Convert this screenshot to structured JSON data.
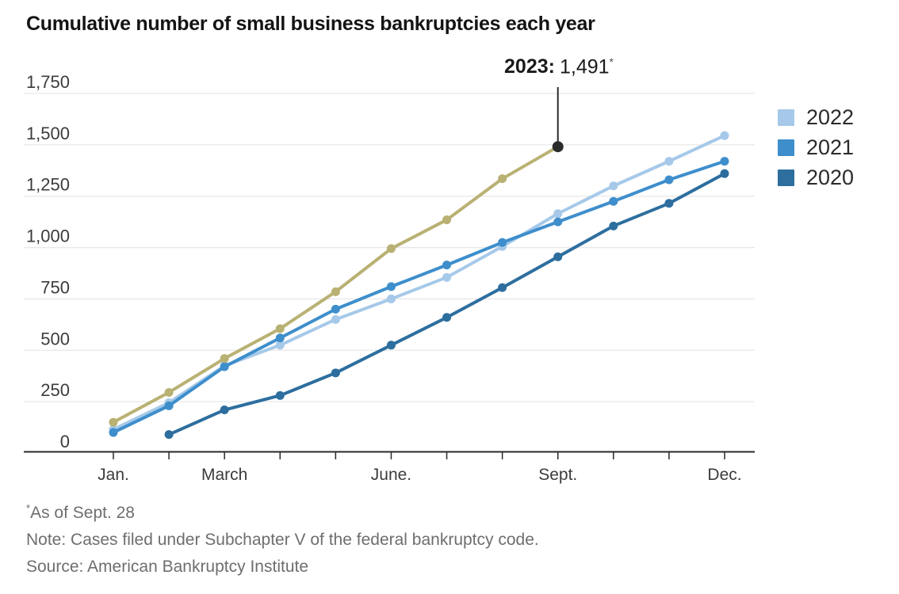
{
  "title": "Cumulative number of small business bankruptcies each year",
  "legend": [
    {
      "label": "2022",
      "color": "#a6c9e9"
    },
    {
      "label": "2021",
      "color": "#3e8ecc"
    },
    {
      "label": "2020",
      "color": "#2d6e9e"
    }
  ],
  "footer": {
    "asterisk": "*",
    "as_of": "As of Sept. 28",
    "note": "Note: Cases filed under Subchapter V of the federal bankruptcy code.",
    "source": "Source: American Bankruptcy Institute"
  },
  "chart_data": {
    "type": "line",
    "title": "Cumulative number of small business bankruptcies each year",
    "x_unit": "month",
    "x_tick_count": 12,
    "x_tick_labels": [
      {
        "index": 0,
        "label": "Jan."
      },
      {
        "index": 2,
        "label": "March"
      },
      {
        "index": 5,
        "label": "June."
      },
      {
        "index": 8,
        "label": "Sept."
      },
      {
        "index": 11,
        "label": "Dec."
      }
    ],
    "ylim": [
      0,
      1750
    ],
    "yticks": [
      0,
      250,
      500,
      750,
      1000,
      1250,
      1500,
      1750
    ],
    "ytick_labels": [
      "0",
      "250",
      "500",
      "750",
      "1,000",
      "1,250",
      "1,500",
      "1,750"
    ],
    "grid": true,
    "legend_position": "right",
    "series": [
      {
        "name": "2022",
        "color": "#a6c9e9",
        "start_index": 0,
        "values": [
          115,
          245,
          425,
          525,
          650,
          750,
          855,
          1005,
          1165,
          1300,
          1420,
          1545
        ]
      },
      {
        "name": "2021",
        "color": "#3e8ecc",
        "start_index": 0,
        "values": [
          100,
          230,
          420,
          560,
          700,
          810,
          915,
          1025,
          1125,
          1225,
          1330,
          1420
        ]
      },
      {
        "name": "2020",
        "color": "#2d6e9e",
        "start_index": 1,
        "values": [
          90,
          210,
          280,
          390,
          525,
          660,
          805,
          955,
          1105,
          1215,
          1360
        ]
      },
      {
        "name": "2023",
        "color": "#b9b173",
        "start_index": 0,
        "values": [
          150,
          295,
          460,
          605,
          785,
          995,
          1135,
          1335,
          1491
        ]
      }
    ],
    "annotation": {
      "series": "2023",
      "point_index": 8,
      "value": 1491,
      "text_bold": "2023:",
      "text_value": "1,491",
      "text_sup": "*"
    }
  }
}
